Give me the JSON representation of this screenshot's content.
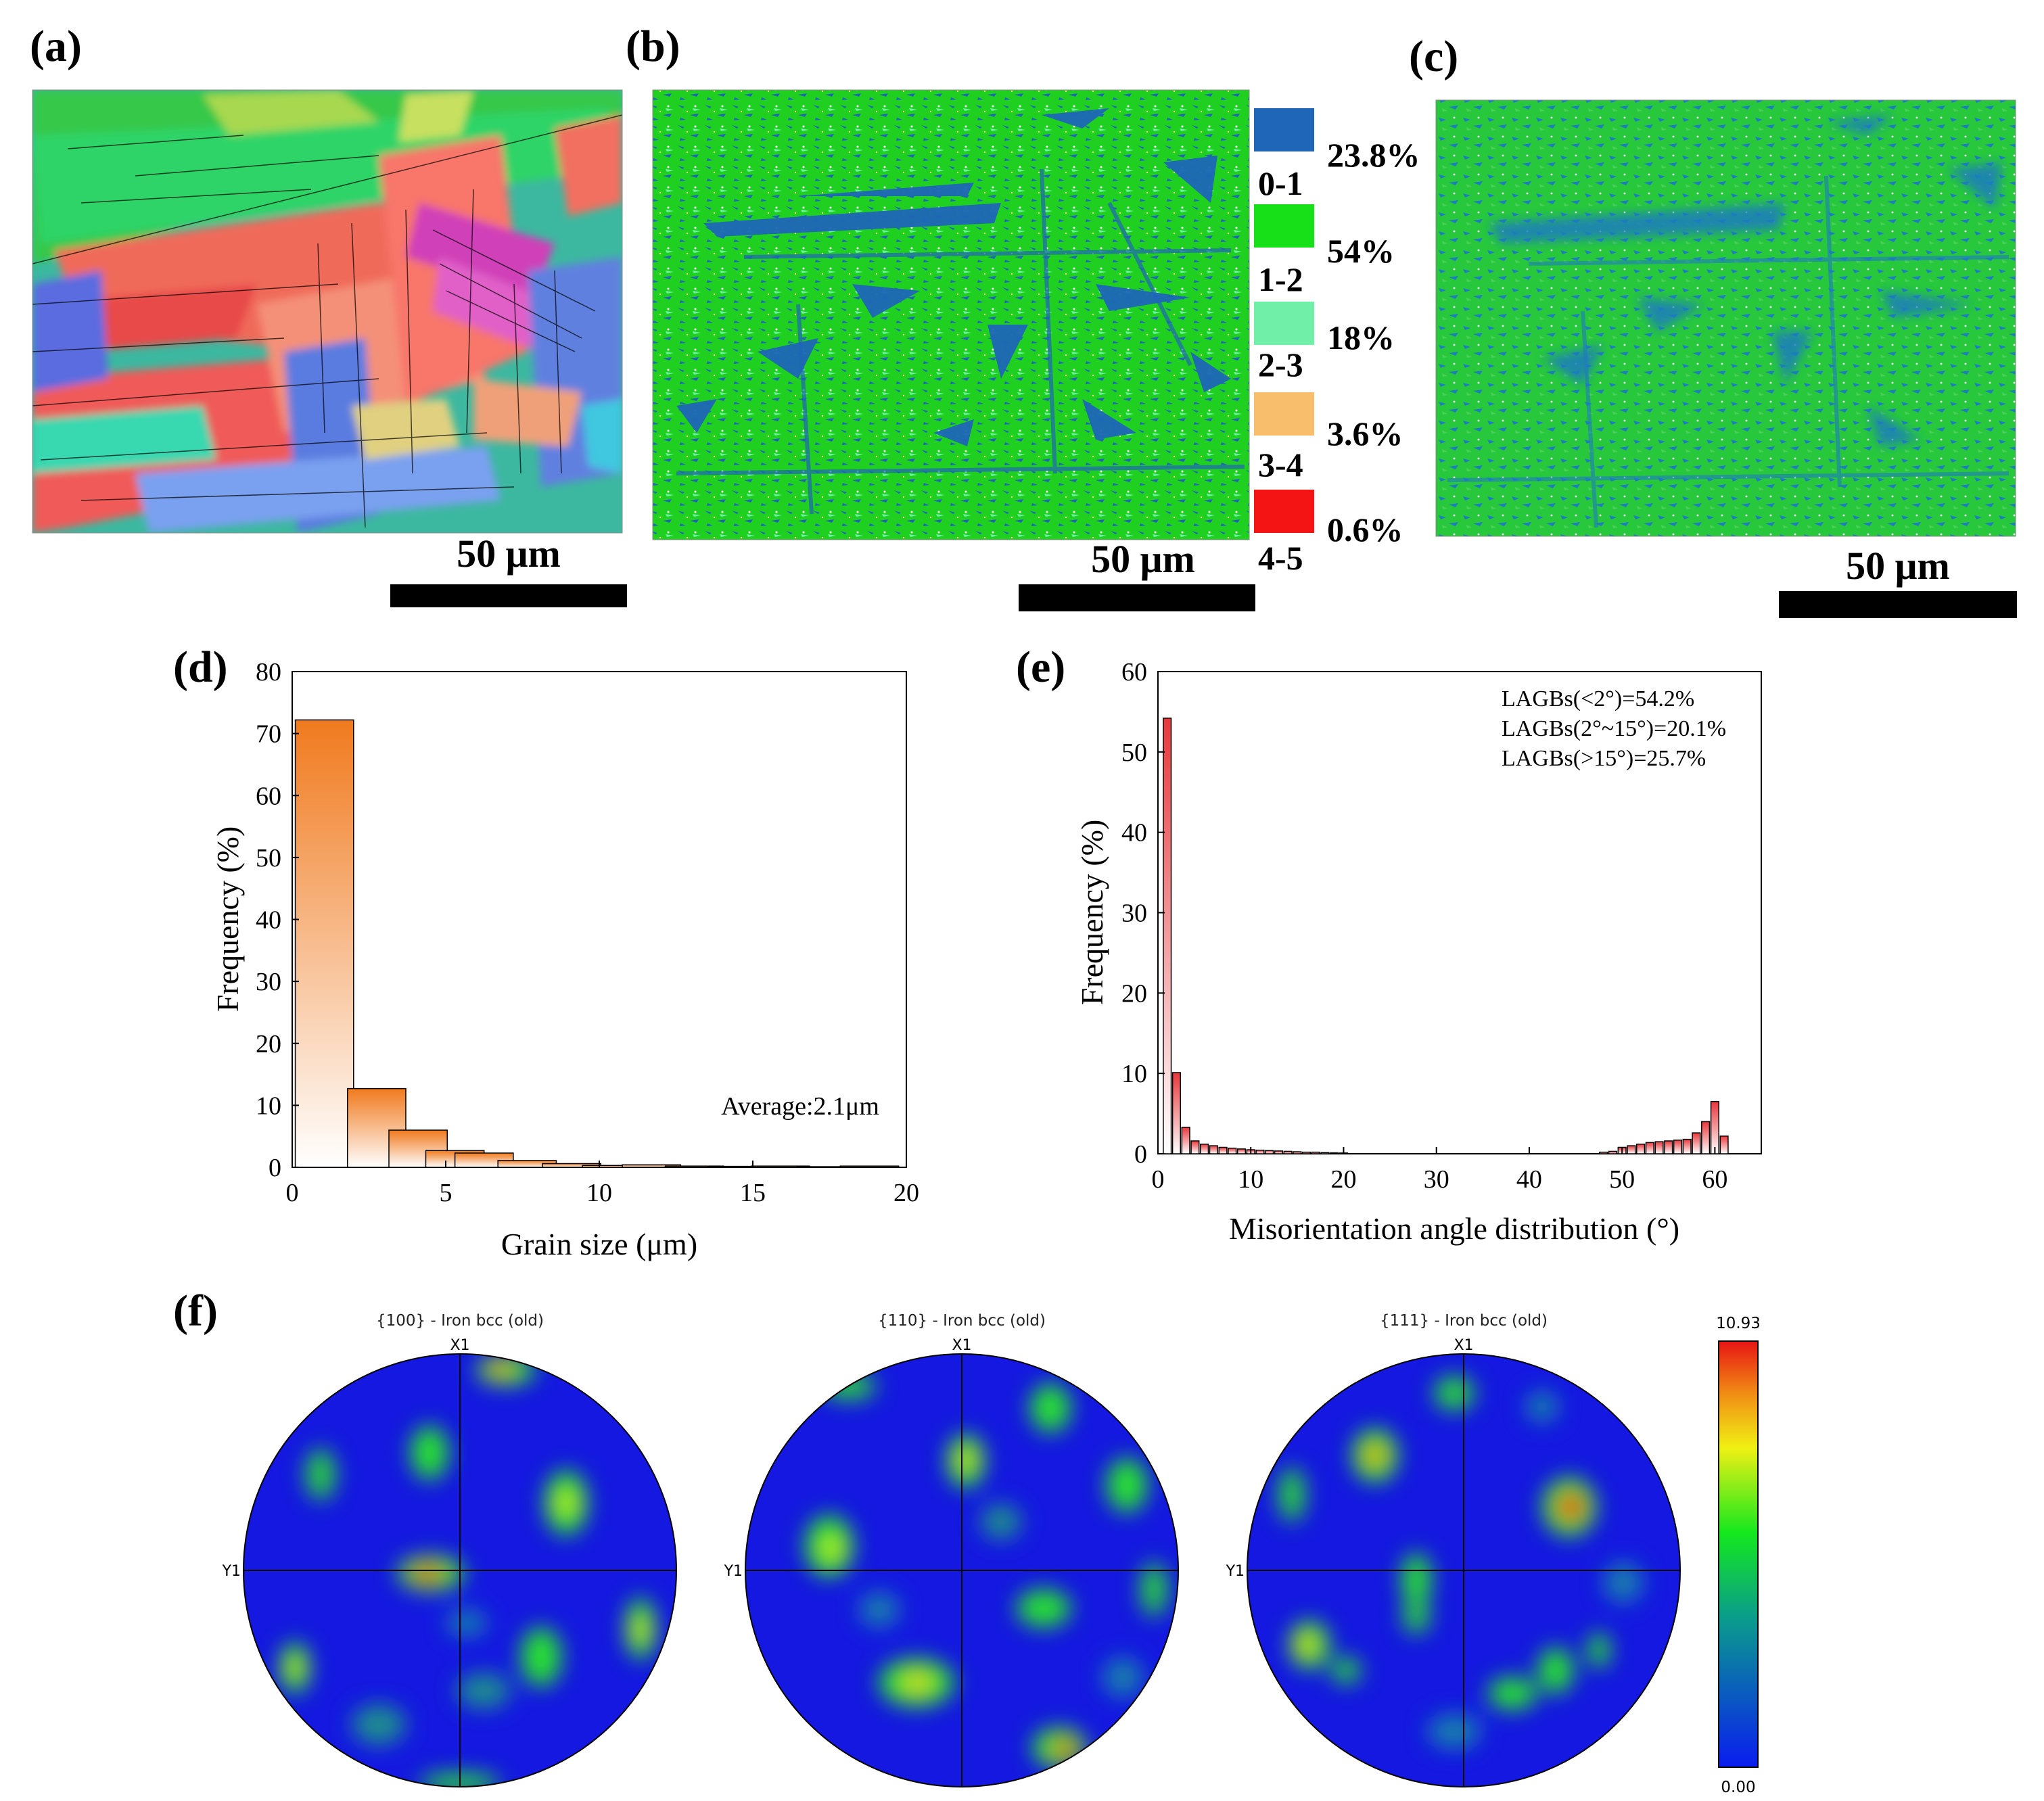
{
  "panel_labels": {
    "a": "(a)",
    "b": "(b)",
    "c": "(c)",
    "d": "(d)",
    "e": "(e)",
    "f": "(f)"
  },
  "scale_bar_label": "50 μm",
  "kam_legend": [
    {
      "range": "0-1",
      "percent": "23.8%",
      "color": "#1f66b8"
    },
    {
      "range": "1-2",
      "percent": "54%",
      "color": "#18e018"
    },
    {
      "range": "2-3",
      "percent": "18%",
      "color": "#6fefa8"
    },
    {
      "range": "3-4",
      "percent": "3.6%",
      "color": "#f8be6c"
    },
    {
      "range": "4-5",
      "percent": "0.6%",
      "color": "#f41414"
    }
  ],
  "chart_data": [
    {
      "id": "d",
      "type": "bar",
      "xlabel": "Grain size (μm)",
      "ylabel": "Frequency (%)",
      "xlim": [
        0,
        20
      ],
      "ylim": [
        0,
        80
      ],
      "xticks": [
        "0",
        "5",
        "10",
        "15",
        "20"
      ],
      "yticks": [
        "0",
        "10",
        "20",
        "30",
        "40",
        "50",
        "60",
        "70",
        "80"
      ],
      "bin_width": 1.9,
      "x": [
        1.05,
        2.75,
        4.1,
        5.3,
        6.25,
        7.65,
        9.1,
        10.4,
        11.7,
        13.1,
        14.5,
        15.9,
        17.4,
        18.8
      ],
      "values": [
        72.2,
        12.7,
        6.0,
        2.7,
        2.3,
        1.1,
        0.6,
        0.3,
        0.4,
        0.2,
        0.15,
        0.2,
        0.1,
        0.2
      ],
      "annotation": "Average:2.1μm",
      "colors": {
        "top": "#f07a1e",
        "bottom": "#ffffff"
      }
    },
    {
      "id": "e",
      "type": "bar",
      "xlabel": "Misorientation angle distribution (°)",
      "ylabel": "Frequency (%)",
      "xlim": [
        0,
        65
      ],
      "ylim": [
        0,
        60
      ],
      "xticks": [
        "0",
        "10",
        "20",
        "30",
        "40",
        "50",
        "60"
      ],
      "yticks": [
        "0",
        "10",
        "20",
        "30",
        "40",
        "50",
        "60"
      ],
      "bin_width": 0.85,
      "x": [
        1,
        2,
        3,
        4,
        5,
        6,
        7,
        8,
        9,
        10,
        11,
        12,
        13,
        14,
        15,
        16,
        17,
        18,
        19,
        20,
        48,
        49,
        50,
        51,
        52,
        53,
        54,
        55,
        56,
        57,
        58,
        59,
        60,
        61
      ],
      "values": [
        54.2,
        10.1,
        3.3,
        1.6,
        1.2,
        1.0,
        0.8,
        0.7,
        0.6,
        0.5,
        0.45,
        0.4,
        0.35,
        0.3,
        0.25,
        0.2,
        0.2,
        0.15,
        0.12,
        0.1,
        0.2,
        0.3,
        0.8,
        1.0,
        1.2,
        1.4,
        1.5,
        1.6,
        1.7,
        1.8,
        2.6,
        4.0,
        6.5,
        2.2
      ],
      "annotations": [
        "LAGBs(<2°)=54.2%",
        "LAGBs(2°~15°)=20.1%",
        "LAGBs(>15°)=25.7%"
      ],
      "colors": {
        "top": "#e8383c",
        "bottom": "#ffffff"
      }
    }
  ],
  "pole_figures": [
    {
      "title": "{100} - Iron bcc (old)",
      "axis_x": "X1",
      "axis_y": "Y1"
    },
    {
      "title": "{110} - Iron bcc (old)",
      "axis_x": "X1",
      "axis_y": "Y1"
    },
    {
      "title": "{111} - Iron bcc (old)",
      "axis_x": "X1",
      "axis_y": "Y1"
    }
  ],
  "colorbar": {
    "max": "10.93",
    "min": "0.00"
  }
}
